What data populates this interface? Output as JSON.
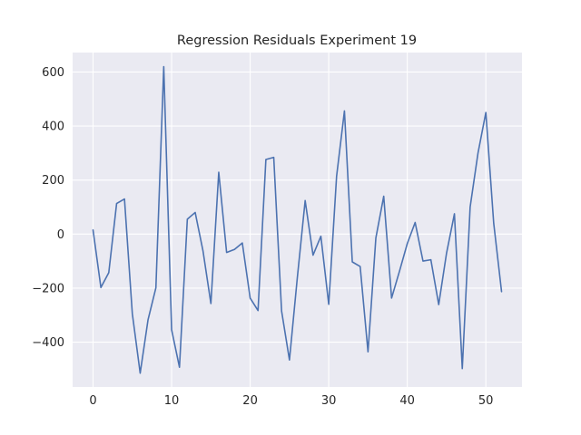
{
  "chart_data": {
    "type": "line",
    "title": "Regression Residuals Experiment 19",
    "xlabel": "",
    "ylabel": "",
    "xlim": [
      -2.6,
      54.6
    ],
    "ylim": [
      -566,
      672
    ],
    "x_ticks": [
      0,
      10,
      20,
      30,
      40,
      50
    ],
    "y_ticks": [
      -400,
      -200,
      0,
      200,
      400,
      600
    ],
    "grid": true,
    "legend": "none",
    "colors": {
      "line": "#4c72b0",
      "background": "#eaeaf2",
      "grid": "#ffffff",
      "text": "#262626"
    },
    "series": [
      {
        "x": [
          0,
          1,
          2,
          3,
          4,
          5,
          6,
          7,
          8,
          9,
          10,
          11,
          12,
          13,
          14,
          15,
          16,
          17,
          18,
          19,
          20,
          21,
          22,
          23,
          24,
          25,
          26,
          27,
          28,
          29,
          30,
          31,
          32,
          33,
          34,
          35,
          36,
          37,
          38,
          39,
          40,
          41,
          42,
          43,
          44,
          45,
          46,
          47,
          48,
          49,
          50,
          51,
          52
        ],
        "values": [
          15,
          -198,
          -143,
          113,
          130,
          -295,
          -515,
          -317,
          -199,
          620,
          -354,
          -493,
          55,
          80,
          -63,
          -257,
          229,
          -68,
          -57,
          -33,
          -237,
          -283,
          276,
          284,
          -285,
          -466,
          -162,
          124,
          -78,
          -8,
          -260,
          214,
          456,
          -103,
          -120,
          -436,
          -14,
          140,
          -237,
          -138,
          -35,
          43,
          -100,
          -95,
          -261,
          -70,
          75,
          -498,
          100,
          300,
          450,
          40,
          -213
        ]
      }
    ]
  }
}
